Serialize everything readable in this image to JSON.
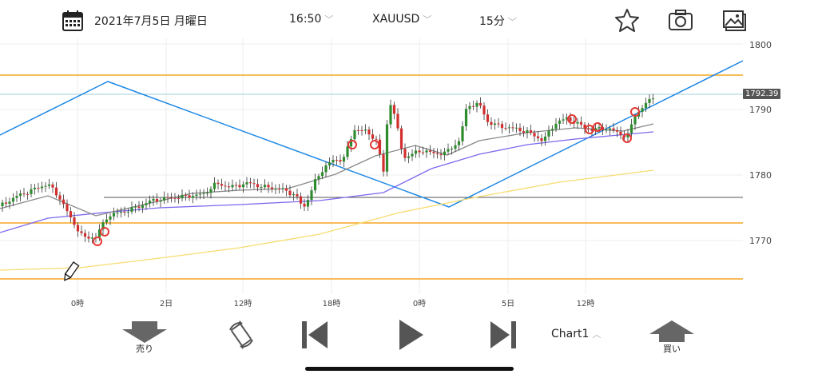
{
  "toolbar": {
    "date": "2021年7月5日 月曜日",
    "time": "16:50",
    "symbol": "XAUUSD",
    "timeframe": "15分"
  },
  "price_axis": {
    "ticks": [
      "1800",
      "1790",
      "1780",
      "1770"
    ],
    "current_price": "1792.39"
  },
  "time_axis": {
    "ticks": [
      "0時",
      "2日",
      "12時",
      "18時",
      "0時",
      "5日",
      "12時"
    ]
  },
  "bottom": {
    "sell_label": "売り",
    "chart_label": "Chart1",
    "buy_label": "買い"
  },
  "colors": {
    "orange_lines": "#F5A623",
    "trend_lines": "#1E88E5",
    "bull": "#2E8B2E",
    "bear": "#D32F2F",
    "ma_gray": "#888888",
    "ma_purple": "#7B68EE",
    "ma_yellow": "#F7DC6F"
  }
}
